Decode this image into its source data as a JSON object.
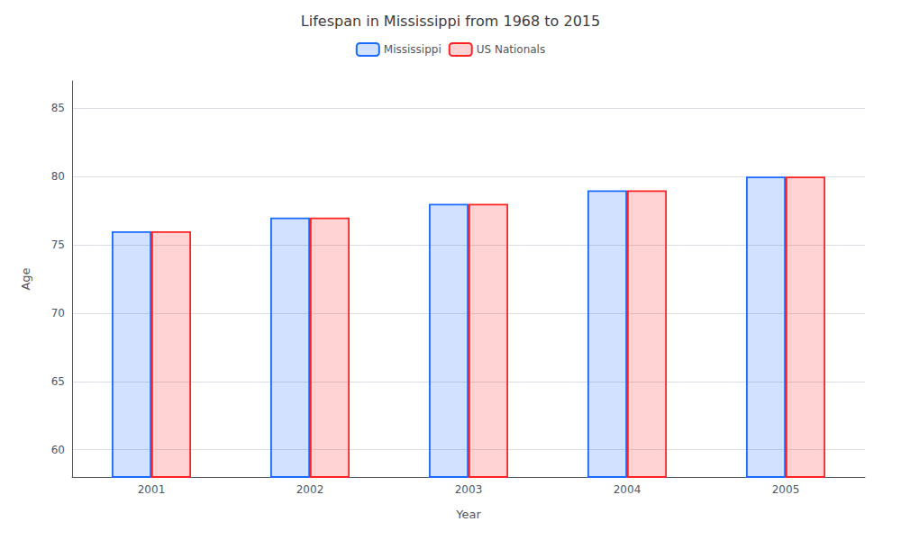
{
  "chart_data": {
    "type": "bar",
    "title": "Lifespan in Mississippi from 1968 to 2015",
    "xlabel": "Year",
    "ylabel": "Age",
    "categories": [
      "2001",
      "2002",
      "2003",
      "2004",
      "2005"
    ],
    "series": [
      {
        "name": "Mississippi",
        "color": "#1a6aff",
        "values": [
          76,
          77,
          78,
          79,
          80
        ]
      },
      {
        "name": "US Nationals",
        "color": "#ff2222",
        "values": [
          76,
          77,
          78,
          79,
          80
        ]
      }
    ],
    "ylim": [
      58,
      87
    ],
    "yticks": [
      60,
      65,
      70,
      75,
      80,
      85
    ],
    "grid": true,
    "legend": "top"
  }
}
